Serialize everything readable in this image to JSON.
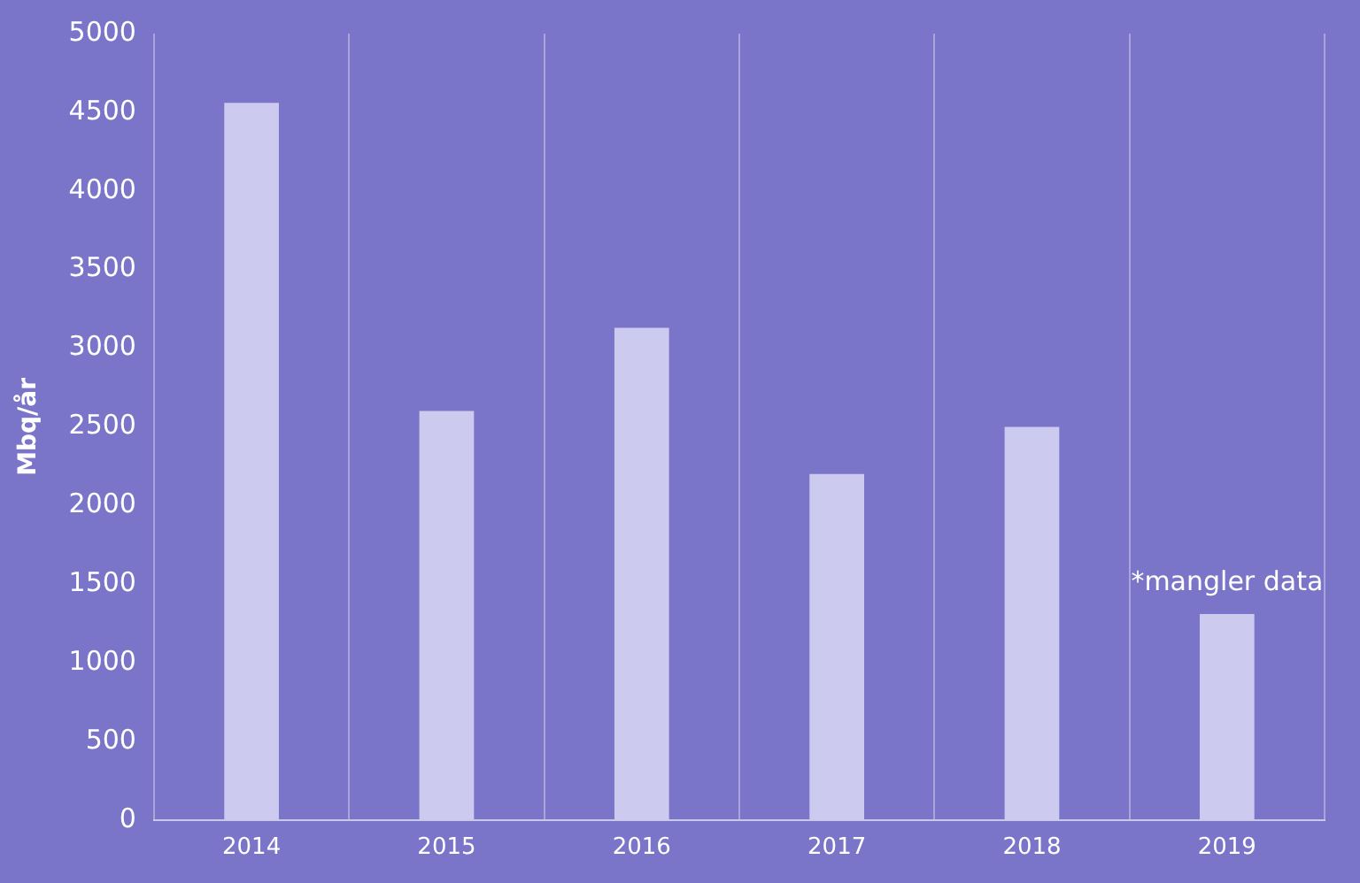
{
  "chart_data": {
    "type": "bar",
    "ylabel": "Mbq/år",
    "categories": [
      "2014",
      "2015",
      "2016",
      "2017",
      "2018",
      "2019"
    ],
    "values": [
      4560,
      2600,
      3130,
      2200,
      2500,
      1310
    ],
    "color": "#cdcaf0",
    "ylim": [
      0,
      5000
    ],
    "yticks": [
      0,
      500,
      1000,
      1500,
      2000,
      2500,
      3000,
      3500,
      4000,
      4500,
      5000
    ],
    "grid": "x",
    "legend": false,
    "annotations": [
      "*mangler data"
    ]
  }
}
